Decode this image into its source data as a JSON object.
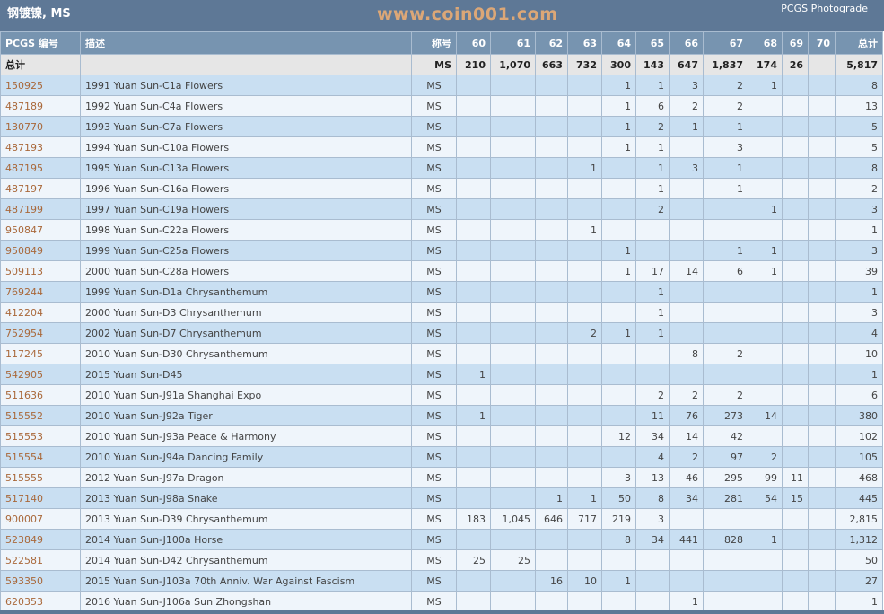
{
  "title": "钢镀镍, MS",
  "brand": "PCGS Photograde",
  "headers": {
    "pcgs": "PCGS 编号",
    "desc": "描述",
    "designation": "称号",
    "grades": [
      "60",
      "61",
      "62",
      "63",
      "64",
      "65",
      "66",
      "67",
      "68",
      "69",
      "70"
    ],
    "total": "总计"
  },
  "totals": {
    "label": "总计",
    "designation": "MS",
    "values": [
      "210",
      "1,070",
      "663",
      "732",
      "300",
      "143",
      "647",
      "1,837",
      "174",
      "26",
      ""
    ],
    "total": "5,817"
  },
  "rows": [
    {
      "pcgs": "150925",
      "desc": "1991 Yuan Sun-C1a Flowers",
      "des": "MS",
      "v": [
        "",
        "",
        "",
        "",
        "1",
        "1",
        "3",
        "2",
        "1",
        "",
        ""
      ],
      "total": "8"
    },
    {
      "pcgs": "487189",
      "desc": "1992 Yuan Sun-C4a Flowers",
      "des": "MS",
      "v": [
        "",
        "",
        "",
        "",
        "1",
        "6",
        "2",
        "2",
        "",
        "",
        ""
      ],
      "total": "13"
    },
    {
      "pcgs": "130770",
      "desc": "1993 Yuan Sun-C7a Flowers",
      "des": "MS",
      "v": [
        "",
        "",
        "",
        "",
        "1",
        "2",
        "1",
        "1",
        "",
        "",
        ""
      ],
      "total": "5"
    },
    {
      "pcgs": "487193",
      "desc": "1994 Yuan Sun-C10a Flowers",
      "des": "MS",
      "v": [
        "",
        "",
        "",
        "",
        "1",
        "1",
        "",
        "3",
        "",
        "",
        ""
      ],
      "total": "5"
    },
    {
      "pcgs": "487195",
      "desc": "1995 Yuan Sun-C13a Flowers",
      "des": "MS",
      "v": [
        "",
        "",
        "",
        "1",
        "",
        "1",
        "3",
        "1",
        "",
        "",
        ""
      ],
      "total": "8"
    },
    {
      "pcgs": "487197",
      "desc": "1996 Yuan Sun-C16a Flowers",
      "des": "MS",
      "v": [
        "",
        "",
        "",
        "",
        "",
        "1",
        "",
        "1",
        "",
        "",
        ""
      ],
      "total": "2"
    },
    {
      "pcgs": "487199",
      "desc": "1997 Yuan Sun-C19a Flowers",
      "des": "MS",
      "v": [
        "",
        "",
        "",
        "",
        "",
        "2",
        "",
        "",
        "1",
        "",
        ""
      ],
      "total": "3"
    },
    {
      "pcgs": "950847",
      "desc": "1998 Yuan Sun-C22a Flowers",
      "des": "MS",
      "v": [
        "",
        "",
        "",
        "1",
        "",
        "",
        "",
        "",
        "",
        "",
        ""
      ],
      "total": "1"
    },
    {
      "pcgs": "950849",
      "desc": "1999 Yuan Sun-C25a Flowers",
      "des": "MS",
      "v": [
        "",
        "",
        "",
        "",
        "1",
        "",
        "",
        "1",
        "1",
        "",
        ""
      ],
      "total": "3"
    },
    {
      "pcgs": "509113",
      "desc": "2000 Yuan Sun-C28a Flowers",
      "des": "MS",
      "v": [
        "",
        "",
        "",
        "",
        "1",
        "17",
        "14",
        "6",
        "1",
        "",
        ""
      ],
      "total": "39"
    },
    {
      "pcgs": "769244",
      "desc": "1999 Yuan Sun-D1a Chrysanthemum",
      "des": "MS",
      "v": [
        "",
        "",
        "",
        "",
        "",
        "1",
        "",
        "",
        "",
        "",
        ""
      ],
      "total": "1"
    },
    {
      "pcgs": "412204",
      "desc": "2000 Yuan Sun-D3 Chrysanthemum",
      "des": "MS",
      "v": [
        "",
        "",
        "",
        "",
        "",
        "1",
        "",
        "",
        "",
        "",
        ""
      ],
      "total": "3"
    },
    {
      "pcgs": "752954",
      "desc": "2002 Yuan Sun-D7 Chrysanthemum",
      "des": "MS",
      "v": [
        "",
        "",
        "",
        "2",
        "1",
        "1",
        "",
        "",
        "",
        "",
        ""
      ],
      "total": "4"
    },
    {
      "pcgs": "117245",
      "desc": "2010 Yuan Sun-D30 Chrysanthemum",
      "des": "MS",
      "v": [
        "",
        "",
        "",
        "",
        "",
        "",
        "8",
        "2",
        "",
        "",
        ""
      ],
      "total": "10"
    },
    {
      "pcgs": "542905",
      "desc": "2015 Yuan Sun-D45",
      "des": "MS",
      "v": [
        "1",
        "",
        "",
        "",
        "",
        "",
        "",
        "",
        "",
        "",
        ""
      ],
      "total": "1"
    },
    {
      "pcgs": "511636",
      "desc": "2010 Yuan Sun-J91a Shanghai Expo",
      "des": "MS",
      "v": [
        "",
        "",
        "",
        "",
        "",
        "2",
        "2",
        "2",
        "",
        "",
        ""
      ],
      "total": "6"
    },
    {
      "pcgs": "515552",
      "desc": "2010 Yuan Sun-J92a Tiger",
      "des": "MS",
      "v": [
        "1",
        "",
        "",
        "",
        "",
        "11",
        "76",
        "273",
        "14",
        "",
        ""
      ],
      "total": "380"
    },
    {
      "pcgs": "515553",
      "desc": "2010 Yuan Sun-J93a Peace & Harmony",
      "des": "MS",
      "v": [
        "",
        "",
        "",
        "",
        "12",
        "34",
        "14",
        "42",
        "",
        "",
        ""
      ],
      "total": "102"
    },
    {
      "pcgs": "515554",
      "desc": "2010 Yuan Sun-J94a Dancing Family",
      "des": "MS",
      "v": [
        "",
        "",
        "",
        "",
        "",
        "4",
        "2",
        "97",
        "2",
        "",
        ""
      ],
      "total": "105"
    },
    {
      "pcgs": "515555",
      "desc": "2012 Yuan Sun-J97a Dragon",
      "des": "MS",
      "v": [
        "",
        "",
        "",
        "",
        "3",
        "13",
        "46",
        "295",
        "99",
        "11",
        ""
      ],
      "total": "468"
    },
    {
      "pcgs": "517140",
      "desc": "2013 Yuan Sun-J98a Snake",
      "des": "MS",
      "v": [
        "",
        "",
        "1",
        "1",
        "50",
        "8",
        "34",
        "281",
        "54",
        "15",
        ""
      ],
      "total": "445"
    },
    {
      "pcgs": "900007",
      "desc": "2013 Yuan Sun-D39 Chrysanthemum",
      "des": "MS",
      "v": [
        "183",
        "1,045",
        "646",
        "717",
        "219",
        "3",
        "",
        "",
        "",
        "",
        ""
      ],
      "total": "2,815"
    },
    {
      "pcgs": "523849",
      "desc": "2014 Yuan Sun-J100a Horse",
      "des": "MS",
      "v": [
        "",
        "",
        "",
        "",
        "8",
        "34",
        "441",
        "828",
        "1",
        "",
        ""
      ],
      "total": "1,312"
    },
    {
      "pcgs": "522581",
      "desc": "2014 Yuan Sun-D42 Chrysanthemum",
      "des": "MS",
      "v": [
        "25",
        "25",
        "",
        "",
        "",
        "",
        "",
        "",
        "",
        "",
        ""
      ],
      "total": "50"
    },
    {
      "pcgs": "593350",
      "desc": "2015 Yuan Sun-J103a 70th Anniv. War Against Fascism",
      "des": "MS",
      "v": [
        "",
        "",
        "16",
        "10",
        "1",
        "",
        "",
        "",
        "",
        "",
        ""
      ],
      "total": "27"
    },
    {
      "pcgs": "620353",
      "desc": "2016 Yuan Sun-J106a Sun Zhongshan",
      "des": "MS",
      "v": [
        "",
        "",
        "",
        "",
        "",
        "",
        "1",
        "",
        "",
        "",
        ""
      ],
      "total": "1"
    }
  ],
  "watermark": "www.coin001.com"
}
